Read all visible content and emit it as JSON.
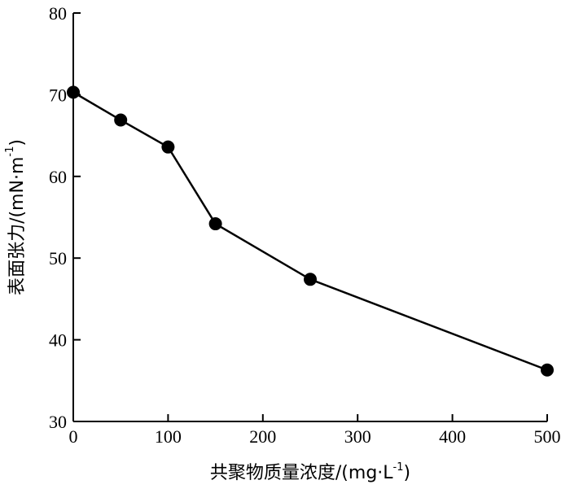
{
  "chart_data": {
    "type": "line",
    "title": "",
    "xlabel": "共聚物质量浓度/(mg·L",
    "xlabel_sup": "-1",
    "xlabel_close": ")",
    "ylabel": "表面张力/(mN·m",
    "ylabel_sup": "-1",
    "ylabel_close": ")",
    "xlim": [
      0,
      500
    ],
    "ylim": [
      30,
      80
    ],
    "xticks": [
      0,
      100,
      200,
      300,
      400,
      500
    ],
    "yticks": [
      30,
      40,
      50,
      60,
      70,
      80
    ],
    "grid": false,
    "legend": "none",
    "series": [
      {
        "x": [
          0,
          50,
          100,
          150,
          250,
          500
        ],
        "y": [
          70.3,
          66.9,
          63.6,
          54.2,
          47.4,
          36.3
        ]
      }
    ]
  }
}
